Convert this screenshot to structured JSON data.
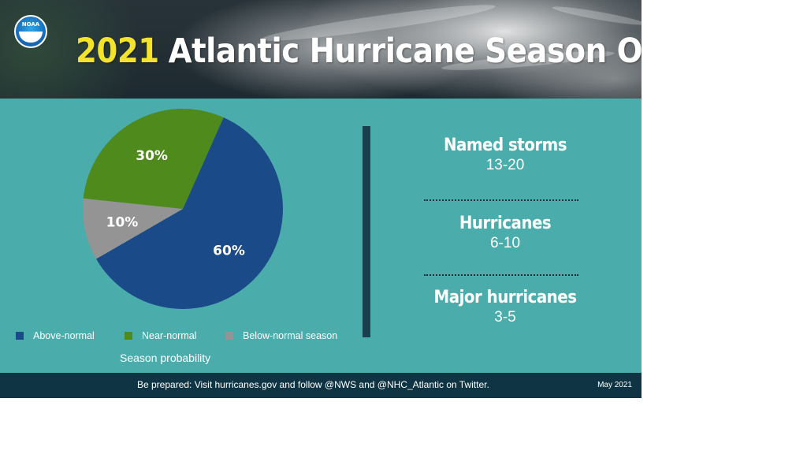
{
  "header": {
    "title_year": "2021",
    "title_rest": "Atlantic Hurricane Season Outlook",
    "logo_text": "NOAA"
  },
  "chart_data": {
    "type": "pie",
    "title": "",
    "slices": [
      {
        "label": "Above-normal",
        "value": 60,
        "label_text": "60%",
        "color": "#1a4a87"
      },
      {
        "label": "Below-normal season",
        "value": 10,
        "label_text": "10%",
        "color": "#949494"
      },
      {
        "label": "Near-normal",
        "value": 30,
        "label_text": "30%",
        "color": "#4e8a1c"
      }
    ],
    "legend": [
      "Above-normal",
      "Near-normal",
      "Below-normal season"
    ],
    "legend_position": "bottom",
    "caption": "Season probability"
  },
  "stats": [
    {
      "label": "Named storms",
      "value": "13-20"
    },
    {
      "label": "Hurricanes",
      "value": "6-10"
    },
    {
      "label": "Major hurricanes",
      "value": "3-5"
    }
  ],
  "footer": {
    "text": "Be prepared: Visit hurricanes.gov and follow @NWS and @NHC_Atlantic on Twitter.",
    "date": "May 2021"
  },
  "colors": {
    "teal": "#4aadac",
    "navy": "#0f3544",
    "title_year": "#f2e32b"
  }
}
